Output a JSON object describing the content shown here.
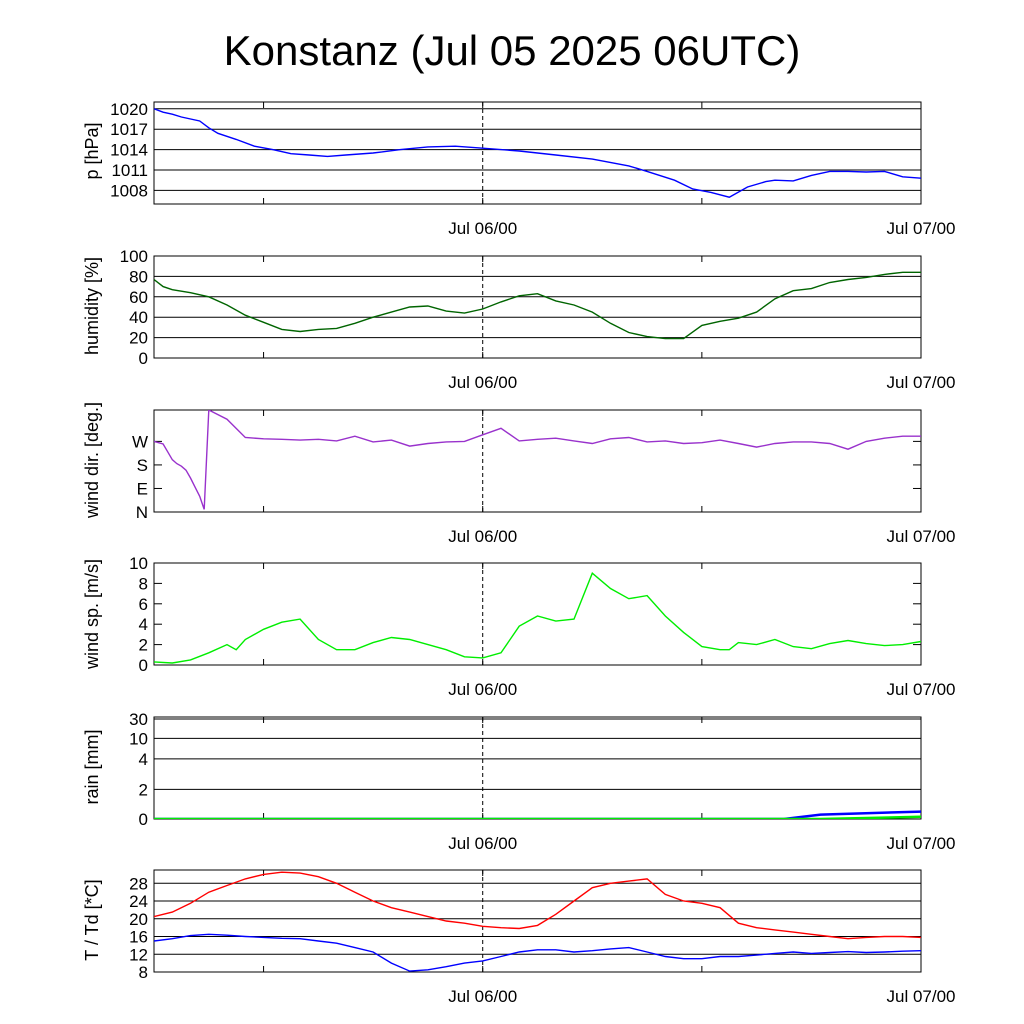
{
  "title": "Konstanz (Jul 05 2025 06UTC)",
  "chart_data": [
    {
      "type": "line",
      "ylabel": "p [hPa]",
      "x_tick_labels": [
        "Jul 06/00",
        "Jul 07/00"
      ],
      "ylim": [
        1006,
        1021
      ],
      "y_ticks": [
        {
          "label": "1020",
          "value": 1020
        },
        {
          "label": "1017",
          "value": 1017
        },
        {
          "label": "1014",
          "value": 1014
        },
        {
          "label": "1011",
          "value": 1011
        },
        {
          "label": "1008",
          "value": 1008
        }
      ],
      "grid": true,
      "series": [
        {
          "color": "#0000ff",
          "x_hours": [
            0,
            1,
            2,
            3,
            5,
            6,
            7,
            9,
            11,
            13,
            15,
            17,
            19,
            21,
            24,
            27,
            30,
            33,
            36,
            40,
            44,
            48,
            52,
            54,
            57,
            59,
            61,
            63,
            65,
            67,
            68,
            70,
            72,
            74,
            76,
            78,
            80,
            82,
            84
          ],
          "y": [
            1020,
            1019.5,
            1019.2,
            1018.8,
            1018.2,
            1017.2,
            1016.4,
            1015.5,
            1014.5,
            1014,
            1013.4,
            1013.2,
            1013.0,
            1013.2,
            1013.5,
            1014.0,
            1014.4,
            1014.5,
            1014.2,
            1013.8,
            1013.2,
            1012.6,
            1011.6,
            1010.8,
            1009.5,
            1008.2,
            1007.7,
            1007.0,
            1008.5,
            1009.3,
            1009.5,
            1009.4,
            1010.2,
            1010.8,
            1010.8,
            1010.7,
            1010.8,
            1010.0,
            1009.8
          ]
        }
      ]
    },
    {
      "type": "line",
      "ylabel": "humidity [%]",
      "x_tick_labels": [
        "Jul 06/00",
        "Jul 07/00"
      ],
      "ylim": [
        0,
        100
      ],
      "y_ticks": [
        {
          "label": "100",
          "value": 100
        },
        {
          "label": "80",
          "value": 80
        },
        {
          "label": "60",
          "value": 60
        },
        {
          "label": "40",
          "value": 40
        },
        {
          "label": "20",
          "value": 20
        },
        {
          "label": "0",
          "value": 0
        }
      ],
      "grid": true,
      "series": [
        {
          "color": "#006400",
          "x_hours": [
            0,
            1,
            2,
            4,
            6,
            8,
            10,
            12,
            14,
            16,
            18,
            20,
            22,
            24,
            26,
            28,
            30,
            32,
            34,
            36,
            38,
            40,
            42,
            44,
            46,
            48,
            50,
            52,
            54,
            56,
            58,
            60,
            62,
            64,
            66,
            68,
            70,
            72,
            74,
            76,
            78,
            80,
            82,
            84
          ],
          "y": [
            77,
            70,
            67,
            64,
            60,
            52,
            42,
            35,
            28,
            26,
            28,
            29,
            34,
            40,
            45,
            50,
            51,
            46,
            44,
            48,
            55,
            61,
            63,
            56,
            52,
            45,
            34,
            25,
            21,
            19,
            19,
            32,
            36,
            39,
            45,
            58,
            66,
            68,
            74,
            77,
            79,
            82,
            84,
            84
          ]
        }
      ]
    },
    {
      "type": "line",
      "ylabel": "wind dir. [deg.]",
      "x_tick_labels": [
        "Jul 06/00",
        "Jul 07/00"
      ],
      "ylim": [
        0,
        390
      ],
      "y_ticks": [
        {
          "label": "W",
          "value": 270
        },
        {
          "label": "S",
          "value": 180
        },
        {
          "label": "E",
          "value": 90
        },
        {
          "label": "N",
          "value": 0
        }
      ],
      "grid": false,
      "series": [
        {
          "color": "#9932cc",
          "x_hours": [
            0,
            0.5,
            1,
            1.5,
            2,
            2.5,
            3,
            3.5,
            4,
            4.5,
            5,
            5.5,
            6,
            8,
            10,
            12,
            14,
            16,
            18,
            20,
            22,
            24,
            26,
            28,
            30,
            32,
            34,
            36,
            38,
            40,
            42,
            44,
            46,
            48,
            50,
            52,
            54,
            56,
            58,
            60,
            62,
            64,
            66,
            68,
            70,
            72,
            74,
            76,
            78,
            80,
            82,
            84
          ],
          "y": [
            270,
            265,
            260,
            230,
            200,
            185,
            175,
            160,
            130,
            95,
            60,
            10,
            390,
            355,
            285,
            280,
            278,
            275,
            278,
            272,
            290,
            268,
            275,
            252,
            262,
            268,
            270,
            295,
            320,
            272,
            278,
            282,
            272,
            262,
            280,
            285,
            268,
            272,
            262,
            265,
            275,
            262,
            248,
            262,
            268,
            268,
            262,
            240,
            270,
            282,
            290,
            290
          ]
        }
      ]
    },
    {
      "type": "line",
      "ylabel": "wind sp. [m/s]",
      "x_tick_labels": [
        "Jul 06/00",
        "Jul 07/00"
      ],
      "ylim": [
        0,
        10
      ],
      "y_ticks": [
        {
          "label": "10",
          "value": 10
        },
        {
          "label": "8",
          "value": 8
        },
        {
          "label": "6",
          "value": 6
        },
        {
          "label": "4",
          "value": 4
        },
        {
          "label": "2",
          "value": 2
        },
        {
          "label": "0",
          "value": 0
        }
      ],
      "grid": false,
      "series": [
        {
          "color": "#00ee00",
          "x_hours": [
            0,
            2,
            4,
            6,
            8,
            9,
            10,
            12,
            14,
            16,
            18,
            20,
            22,
            24,
            26,
            28,
            30,
            32,
            34,
            36,
            38,
            40,
            42,
            44,
            46,
            48,
            50,
            52,
            54,
            56,
            58,
            60,
            62,
            63,
            64,
            66,
            68,
            70,
            72,
            74,
            76,
            78,
            80,
            82,
            84
          ],
          "y": [
            0.3,
            0.2,
            0.5,
            1.2,
            2.0,
            1.5,
            2.5,
            3.5,
            4.2,
            4.5,
            2.5,
            1.5,
            1.5,
            2.2,
            2.7,
            2.5,
            2.0,
            1.5,
            0.8,
            0.7,
            1.2,
            3.8,
            4.8,
            4.3,
            4.5,
            9.0,
            7.5,
            6.5,
            6.8,
            4.8,
            3.2,
            1.8,
            1.5,
            1.5,
            2.2,
            2.0,
            2.5,
            1.8,
            1.6,
            2.1,
            2.4,
            2.1,
            1.9,
            2.0,
            2.3
          ]
        }
      ]
    },
    {
      "type": "line",
      "ylabel": "rain [mm]",
      "x_tick_labels": [
        "Jul 06/00",
        "Jul 07/00"
      ],
      "y_ticks": [
        {
          "label": "30",
          "value": 30
        },
        {
          "label": "10",
          "value": 10
        },
        {
          "label": "4",
          "value": 4
        },
        {
          "label": "2",
          "value": 2
        },
        {
          "label": "0",
          "value": 0
        }
      ],
      "grid": true,
      "series": [
        {
          "color": "#0000ff",
          "x_hours": [
            0,
            69,
            73,
            84
          ],
          "y": [
            0,
            0,
            0.3,
            0.5
          ]
        },
        {
          "color": "#00ee00",
          "x_hours": [
            0,
            73,
            84
          ],
          "y": [
            0,
            0,
            0.15
          ]
        }
      ]
    },
    {
      "type": "line",
      "ylabel": "T / Td [*C]",
      "x_tick_labels": [
        "Jul 06/00",
        "Jul 07/00"
      ],
      "ylim": [
        8,
        31
      ],
      "y_ticks": [
        {
          "label": "28",
          "value": 28
        },
        {
          "label": "24",
          "value": 24
        },
        {
          "label": "20",
          "value": 20
        },
        {
          "label": "16",
          "value": 16
        },
        {
          "label": "12",
          "value": 12
        },
        {
          "label": "8",
          "value": 8
        }
      ],
      "grid": true,
      "series": [
        {
          "color": "#ff0000",
          "x_hours": [
            0,
            2,
            4,
            6,
            8,
            10,
            12,
            14,
            16,
            18,
            20,
            22,
            24,
            26,
            28,
            30,
            32,
            34,
            36,
            38,
            40,
            42,
            44,
            46,
            48,
            50,
            52,
            54,
            56,
            58,
            60,
            62,
            64,
            66,
            68,
            70,
            72,
            74,
            76,
            78,
            80,
            82,
            84
          ],
          "y": [
            20.5,
            21.5,
            23.5,
            26,
            27.5,
            29,
            30,
            30.5,
            30.3,
            29.5,
            28,
            26,
            24,
            22.5,
            21.5,
            20.5,
            19.5,
            19,
            18.3,
            18,
            17.8,
            18.5,
            21,
            24,
            27,
            28,
            28.5,
            29,
            25.5,
            24,
            23.5,
            22.5,
            19,
            18,
            17.5,
            17,
            16.5,
            16,
            15.5,
            15.8,
            16,
            16,
            15.8
          ]
        },
        {
          "color": "#0000ff",
          "x_hours": [
            0,
            2,
            4,
            6,
            8,
            10,
            12,
            14,
            16,
            18,
            20,
            22,
            24,
            26,
            28,
            30,
            32,
            34,
            36,
            38,
            40,
            42,
            44,
            46,
            48,
            50,
            52,
            54,
            56,
            58,
            60,
            62,
            64,
            66,
            68,
            70,
            72,
            74,
            76,
            78,
            80,
            82,
            84
          ],
          "y": [
            15,
            15.5,
            16.2,
            16.5,
            16.3,
            16,
            15.8,
            15.6,
            15.5,
            15,
            14.5,
            13.5,
            12.5,
            10,
            8.2,
            8.5,
            9.2,
            10,
            10.5,
            11.5,
            12.5,
            13,
            13,
            12.5,
            12.8,
            13.2,
            13.5,
            12.5,
            11.5,
            11,
            11,
            11.5,
            11.5,
            11.8,
            12.2,
            12.5,
            12.2,
            12.4,
            12.6,
            12.4,
            12.5,
            12.7,
            12.8
          ]
        }
      ]
    }
  ]
}
